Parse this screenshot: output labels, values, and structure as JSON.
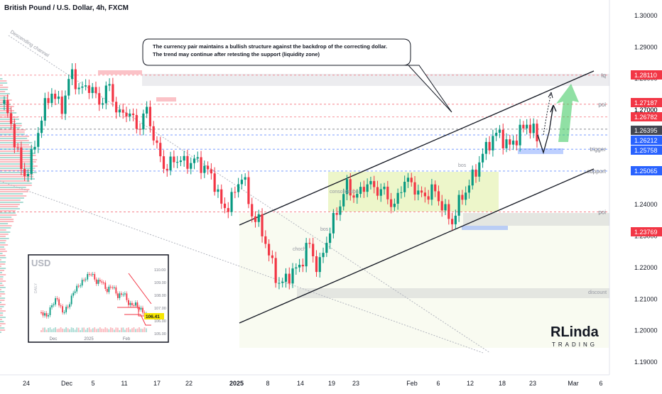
{
  "header": {
    "title": "British Pound / U.S. Dollar, 4h, FXCM"
  },
  "callout": {
    "line1": "The currency pair maintains a bullish structure against the backdrop of the correcting dollar.",
    "line2": "The trend may continue after retesting the support (liquidity zone)"
  },
  "annotations": {
    "descending_channel": "Descending channel",
    "consolidation": "consolidation",
    "choch": "choch",
    "bos_1": "bos",
    "bos_2": "bos",
    "discount": "discount"
  },
  "levels": [
    {
      "name": "lq",
      "price": "1.28110",
      "value": 1.2811,
      "color": "#f23645"
    },
    {
      "name": "poi",
      "price": "1.27187",
      "value": 1.27187,
      "color": "#f23645"
    },
    {
      "name": "",
      "price": "1.26782",
      "value": 1.26782,
      "color": "#f23645"
    },
    {
      "name": "",
      "price": "1.26395",
      "value": 1.26395,
      "color": "#434651"
    },
    {
      "name": "",
      "price": "1.26212",
      "value": 1.26212,
      "color": "#2962ff"
    },
    {
      "name": "trigger",
      "price": "1.25758",
      "value": 1.25758,
      "color": "#2962ff"
    },
    {
      "name": "support",
      "price": "1.25065",
      "value": 1.25065,
      "color": "#2962ff"
    },
    {
      "name": "poi",
      "price": "1.23769",
      "value": 1.23769,
      "color": "#f23645"
    }
  ],
  "overlap_price_label": "1.27000",
  "inset": {
    "title": "USD",
    "side_label": "DAILY",
    "last_value": "106.41",
    "y_ticks": [
      "110.00",
      "109.00",
      "108.00",
      "107.00",
      "106.00",
      "105.00"
    ],
    "x_ticks": [
      "Dec",
      "2025",
      "Feb"
    ]
  },
  "logo": {
    "text": "RLinda",
    "sub": "TRADING"
  },
  "chart_data": {
    "type": "candlestick",
    "symbol": "GBPUSD",
    "timeframe": "4h",
    "ylim": [
      1.187,
      1.305
    ],
    "y_ticks": [
      "1.30000",
      "1.29000",
      "1.28000",
      "1.27000",
      "1.26000",
      "1.25000",
      "1.24000",
      "1.23000",
      "1.22000",
      "1.21000",
      "1.20000",
      "1.19000"
    ],
    "x_ticks": [
      "24",
      "Dec",
      "5",
      "11",
      "17",
      "22",
      "2025",
      "8",
      "14",
      "19",
      "23",
      "Feb",
      "6",
      "12",
      "18",
      "23",
      "Mar",
      "6"
    ],
    "bold_x_ticks": [
      "2025"
    ],
    "up_color": "#089981",
    "down_color": "#f23645",
    "path_points": [
      [
        0,
        1.272
      ],
      [
        2,
        1.262
      ],
      [
        4,
        1.248
      ],
      [
        6,
        1.256
      ],
      [
        8,
        1.269
      ],
      [
        10,
        1.276
      ],
      [
        12,
        1.27
      ],
      [
        14,
        1.282
      ],
      [
        16,
        1.276
      ],
      [
        18,
        1.278
      ],
      [
        20,
        1.272
      ],
      [
        22,
        1.278
      ],
      [
        24,
        1.268
      ],
      [
        26,
        1.27
      ],
      [
        28,
        1.264
      ],
      [
        30,
        1.27
      ],
      [
        32,
        1.258
      ],
      [
        34,
        1.251
      ],
      [
        36,
        1.255
      ],
      [
        38,
        1.253
      ],
      [
        40,
        1.254
      ],
      [
        42,
        1.252
      ],
      [
        44,
        1.248
      ],
      [
        46,
        1.238
      ],
      [
        48,
        1.242
      ],
      [
        50,
        1.25
      ],
      [
        52,
        1.237
      ],
      [
        54,
        1.233
      ],
      [
        56,
        1.222
      ],
      [
        58,
        1.214
      ],
      [
        60,
        1.218
      ],
      [
        62,
        1.22
      ],
      [
        64,
        1.228
      ],
      [
        66,
        1.219
      ],
      [
        68,
        1.23
      ],
      [
        70,
        1.238
      ],
      [
        72,
        1.246
      ],
      [
        74,
        1.242
      ],
      [
        76,
        1.247
      ],
      [
        78,
        1.245
      ],
      [
        80,
        1.244
      ],
      [
        82,
        1.239
      ],
      [
        84,
        1.248
      ],
      [
        86,
        1.246
      ],
      [
        88,
        1.242
      ],
      [
        90,
        1.245
      ],
      [
        92,
        1.24
      ],
      [
        94,
        1.234
      ],
      [
        96,
        1.242
      ],
      [
        98,
        1.247
      ],
      [
        100,
        1.254
      ],
      [
        102,
        1.26
      ],
      [
        104,
        1.263
      ],
      [
        106,
        1.258
      ],
      [
        108,
        1.262
      ],
      [
        110,
        1.266
      ],
      [
        112,
        1.261
      ]
    ],
    "channel_descending": [
      [
        0,
        1.283
      ],
      [
        150,
        1.204
      ]
    ],
    "channel_ascending_upper": [
      [
        66,
        1.235
      ],
      [
        138,
        1.281
      ]
    ],
    "channel_ascending_lower": [
      [
        66,
        1.205
      ],
      [
        138,
        1.251
      ]
    ]
  }
}
